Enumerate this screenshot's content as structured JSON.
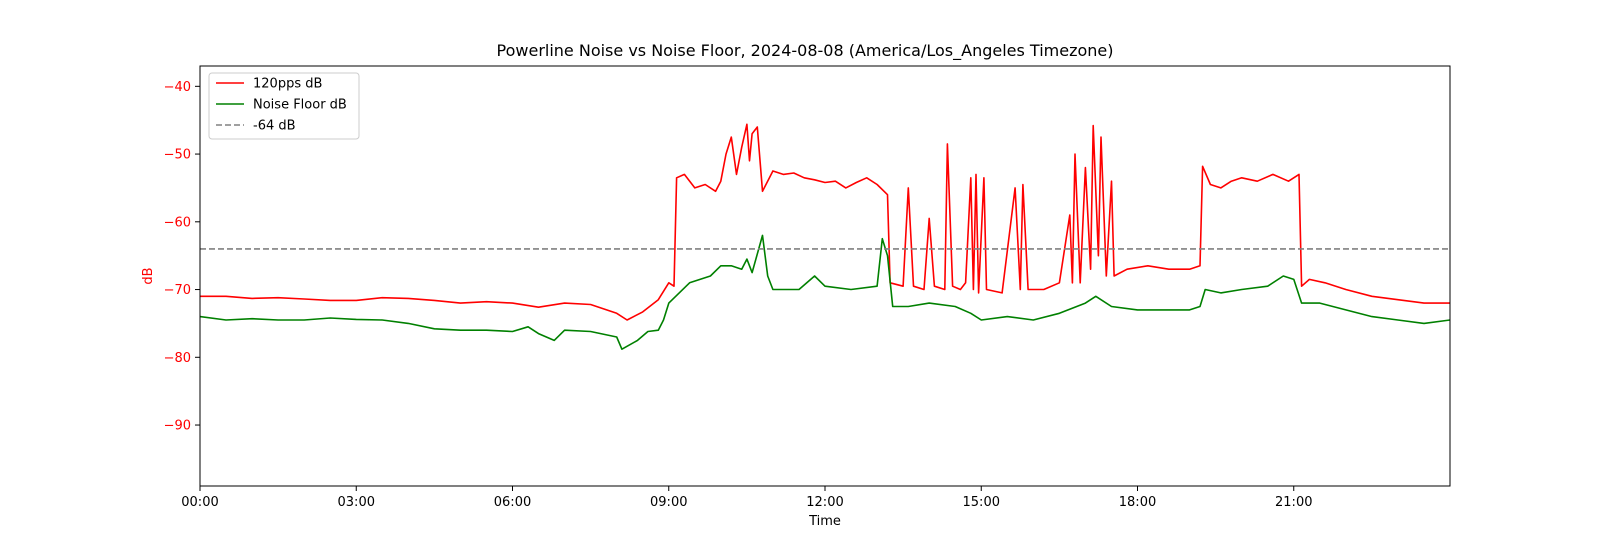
{
  "chart_data": {
    "type": "line",
    "title": "Powerline Noise vs Noise Floor, 2024-08-08 (America/Los_Angeles Timezone)",
    "xlabel": "Time",
    "ylabel": "dB",
    "x_unit": "hours",
    "xlim": [
      0,
      24
    ],
    "ylim": [
      -99,
      -37
    ],
    "x_ticks": [
      {
        "value": 0,
        "label": "00:00"
      },
      {
        "value": 3,
        "label": "03:00"
      },
      {
        "value": 6,
        "label": "06:00"
      },
      {
        "value": 9,
        "label": "09:00"
      },
      {
        "value": 12,
        "label": "12:00"
      },
      {
        "value": 15,
        "label": "15:00"
      },
      {
        "value": 18,
        "label": "18:00"
      },
      {
        "value": 21,
        "label": "21:00"
      }
    ],
    "y_ticks": [
      {
        "value": -40,
        "label": "−40"
      },
      {
        "value": -50,
        "label": "−50"
      },
      {
        "value": -60,
        "label": "−60"
      },
      {
        "value": -70,
        "label": "−70"
      },
      {
        "value": -80,
        "label": "−80"
      },
      {
        "value": -90,
        "label": "−90"
      }
    ],
    "grid": false,
    "legend_position": "top-left",
    "ylabel_color": "#ff0000",
    "series": [
      {
        "name": "120pps dB",
        "color": "#ff0000",
        "style": "solid",
        "points": [
          [
            0.0,
            -71.0
          ],
          [
            0.5,
            -71.0
          ],
          [
            1.0,
            -71.3
          ],
          [
            1.5,
            -71.2
          ],
          [
            2.0,
            -71.4
          ],
          [
            2.5,
            -71.6
          ],
          [
            3.0,
            -71.6
          ],
          [
            3.5,
            -71.2
          ],
          [
            4.0,
            -71.3
          ],
          [
            4.5,
            -71.6
          ],
          [
            5.0,
            -72.0
          ],
          [
            5.5,
            -71.8
          ],
          [
            6.0,
            -72.0
          ],
          [
            6.5,
            -72.6
          ],
          [
            7.0,
            -72.0
          ],
          [
            7.5,
            -72.2
          ],
          [
            8.0,
            -73.5
          ],
          [
            8.2,
            -74.5
          ],
          [
            8.5,
            -73.3
          ],
          [
            8.8,
            -71.5
          ],
          [
            9.0,
            -69.0
          ],
          [
            9.1,
            -69.5
          ],
          [
            9.15,
            -53.5
          ],
          [
            9.3,
            -53.0
          ],
          [
            9.5,
            -55.0
          ],
          [
            9.7,
            -54.5
          ],
          [
            9.9,
            -55.5
          ],
          [
            10.0,
            -54.0
          ],
          [
            10.1,
            -50.0
          ],
          [
            10.2,
            -47.5
          ],
          [
            10.3,
            -53.0
          ],
          [
            10.4,
            -49.0
          ],
          [
            10.5,
            -45.6
          ],
          [
            10.55,
            -51.0
          ],
          [
            10.6,
            -47.0
          ],
          [
            10.7,
            -46.0
          ],
          [
            10.8,
            -55.5
          ],
          [
            11.0,
            -52.5
          ],
          [
            11.2,
            -53.0
          ],
          [
            11.4,
            -52.8
          ],
          [
            11.6,
            -53.5
          ],
          [
            11.8,
            -53.8
          ],
          [
            12.0,
            -54.2
          ],
          [
            12.2,
            -54.0
          ],
          [
            12.4,
            -55.0
          ],
          [
            12.6,
            -54.2
          ],
          [
            12.8,
            -53.5
          ],
          [
            13.0,
            -54.5
          ],
          [
            13.2,
            -56.0
          ],
          [
            13.25,
            -69.0
          ],
          [
            13.5,
            -69.5
          ],
          [
            13.6,
            -55.0
          ],
          [
            13.7,
            -69.5
          ],
          [
            13.9,
            -70.0
          ],
          [
            14.0,
            -59.5
          ],
          [
            14.1,
            -69.5
          ],
          [
            14.3,
            -70.0
          ],
          [
            14.35,
            -48.5
          ],
          [
            14.45,
            -69.5
          ],
          [
            14.6,
            -70.0
          ],
          [
            14.7,
            -69.0
          ],
          [
            14.8,
            -53.5
          ],
          [
            14.85,
            -70.0
          ],
          [
            14.9,
            -53.0
          ],
          [
            14.95,
            -70.5
          ],
          [
            15.05,
            -53.5
          ],
          [
            15.1,
            -70.0
          ],
          [
            15.4,
            -70.5
          ],
          [
            15.65,
            -55.0
          ],
          [
            15.75,
            -70.0
          ],
          [
            15.8,
            -54.5
          ],
          [
            15.9,
            -70.0
          ],
          [
            16.2,
            -70.0
          ],
          [
            16.5,
            -69.0
          ],
          [
            16.7,
            -59.0
          ],
          [
            16.75,
            -69.0
          ],
          [
            16.8,
            -50.0
          ],
          [
            16.9,
            -69.0
          ],
          [
            17.0,
            -52.0
          ],
          [
            17.1,
            -67.0
          ],
          [
            17.15,
            -45.8
          ],
          [
            17.25,
            -65.0
          ],
          [
            17.3,
            -47.5
          ],
          [
            17.4,
            -68.0
          ],
          [
            17.5,
            -54.0
          ],
          [
            17.55,
            -68.0
          ],
          [
            17.8,
            -67.0
          ],
          [
            18.2,
            -66.5
          ],
          [
            18.6,
            -67.0
          ],
          [
            19.0,
            -67.0
          ],
          [
            19.2,
            -66.5
          ],
          [
            19.25,
            -51.8
          ],
          [
            19.4,
            -54.5
          ],
          [
            19.6,
            -55.0
          ],
          [
            19.8,
            -54.0
          ],
          [
            20.0,
            -53.5
          ],
          [
            20.3,
            -54.0
          ],
          [
            20.6,
            -53.0
          ],
          [
            20.9,
            -54.0
          ],
          [
            21.1,
            -53.0
          ],
          [
            21.15,
            -69.5
          ],
          [
            21.3,
            -68.5
          ],
          [
            21.6,
            -69.0
          ],
          [
            22.0,
            -70.0
          ],
          [
            22.5,
            -71.0
          ],
          [
            23.0,
            -71.5
          ],
          [
            23.5,
            -72.0
          ],
          [
            24.0,
            -72.0
          ]
        ]
      },
      {
        "name": "Noise Floor dB",
        "color": "#008000",
        "style": "solid",
        "points": [
          [
            0.0,
            -74.0
          ],
          [
            0.5,
            -74.5
          ],
          [
            1.0,
            -74.3
          ],
          [
            1.5,
            -74.5
          ],
          [
            2.0,
            -74.5
          ],
          [
            2.5,
            -74.2
          ],
          [
            3.0,
            -74.4
          ],
          [
            3.5,
            -74.5
          ],
          [
            4.0,
            -75.0
          ],
          [
            4.5,
            -75.8
          ],
          [
            5.0,
            -76.0
          ],
          [
            5.5,
            -76.0
          ],
          [
            6.0,
            -76.2
          ],
          [
            6.3,
            -75.5
          ],
          [
            6.5,
            -76.5
          ],
          [
            6.8,
            -77.5
          ],
          [
            7.0,
            -76.0
          ],
          [
            7.5,
            -76.2
          ],
          [
            8.0,
            -77.0
          ],
          [
            8.1,
            -78.8
          ],
          [
            8.4,
            -77.5
          ],
          [
            8.6,
            -76.2
          ],
          [
            8.8,
            -76.0
          ],
          [
            8.9,
            -74.5
          ],
          [
            9.0,
            -72.0
          ],
          [
            9.2,
            -70.5
          ],
          [
            9.4,
            -69.0
          ],
          [
            9.6,
            -68.5
          ],
          [
            9.8,
            -68.0
          ],
          [
            10.0,
            -66.5
          ],
          [
            10.2,
            -66.5
          ],
          [
            10.4,
            -67.0
          ],
          [
            10.5,
            -65.5
          ],
          [
            10.6,
            -67.5
          ],
          [
            10.8,
            -62.0
          ],
          [
            10.9,
            -68.0
          ],
          [
            11.0,
            -70.0
          ],
          [
            11.5,
            -70.0
          ],
          [
            11.8,
            -68.0
          ],
          [
            12.0,
            -69.5
          ],
          [
            12.5,
            -70.0
          ],
          [
            13.0,
            -69.5
          ],
          [
            13.1,
            -62.5
          ],
          [
            13.2,
            -65.0
          ],
          [
            13.3,
            -72.5
          ],
          [
            13.6,
            -72.5
          ],
          [
            14.0,
            -72.0
          ],
          [
            14.5,
            -72.5
          ],
          [
            14.8,
            -73.5
          ],
          [
            15.0,
            -74.5
          ],
          [
            15.5,
            -74.0
          ],
          [
            16.0,
            -74.5
          ],
          [
            16.5,
            -73.5
          ],
          [
            17.0,
            -72.0
          ],
          [
            17.2,
            -71.0
          ],
          [
            17.5,
            -72.5
          ],
          [
            18.0,
            -73.0
          ],
          [
            18.5,
            -73.0
          ],
          [
            19.0,
            -73.0
          ],
          [
            19.2,
            -72.5
          ],
          [
            19.3,
            -70.0
          ],
          [
            19.6,
            -70.5
          ],
          [
            20.0,
            -70.0
          ],
          [
            20.5,
            -69.5
          ],
          [
            20.8,
            -68.0
          ],
          [
            21.0,
            -68.5
          ],
          [
            21.15,
            -72.0
          ],
          [
            21.5,
            -72.0
          ],
          [
            22.0,
            -73.0
          ],
          [
            22.5,
            -74.0
          ],
          [
            23.0,
            -74.5
          ],
          [
            23.5,
            -75.0
          ],
          [
            24.0,
            -74.5
          ]
        ]
      },
      {
        "name": "-64 dB",
        "color": "#808080",
        "style": "dashed",
        "points": [
          [
            0.0,
            -64.0
          ],
          [
            24.0,
            -64.0
          ]
        ]
      }
    ]
  }
}
